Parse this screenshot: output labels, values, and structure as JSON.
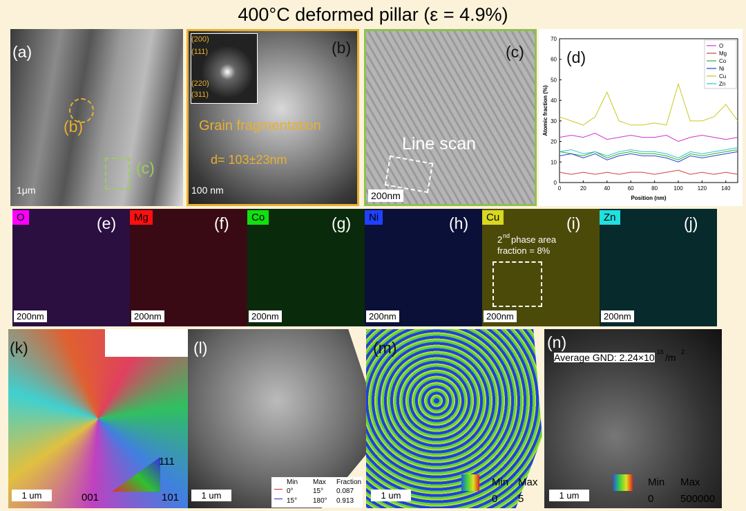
{
  "title": "400°C deformed pillar (ε = 4.9%)",
  "panels": {
    "a": {
      "label": "(a)",
      "markers": [
        "(b)",
        "(c)"
      ],
      "scale_bar": "1μm"
    },
    "b": {
      "label": "(b)",
      "diffraction": [
        "(200)",
        "(111)",
        "(220)",
        "(311)"
      ],
      "caption": "Grain fragmentation",
      "size": "d= 103±23nm",
      "scale_bar": "100 nm"
    },
    "c": {
      "label": "(c)",
      "annotation": "Line scan",
      "scale_bar": "200nm"
    },
    "d": {
      "label": "(d)"
    },
    "maps": [
      {
        "element": "O",
        "label": "(e)",
        "scale_bar": "200nm"
      },
      {
        "element": "Mg",
        "label": "(f)",
        "scale_bar": "200nm"
      },
      {
        "element": "Co",
        "label": "(g)",
        "scale_bar": "200nm"
      },
      {
        "element": "Ni",
        "label": "(h)",
        "scale_bar": "200nm"
      },
      {
        "element": "Cu",
        "label": "(i)",
        "scale_bar": "200nm",
        "note": [
          "2",
          "nd",
          " phase area",
          "fraction = 8%"
        ]
      },
      {
        "element": "Zn",
        "label": "(j)",
        "scale_bar": "200nm"
      }
    ],
    "k": {
      "label": "(k)",
      "scale_bar": "1 um",
      "poles": [
        "111",
        "001",
        "101"
      ]
    },
    "l": {
      "label": "(l)",
      "scale_bar": "1 um",
      "table": {
        "header": [
          "Min",
          "Max",
          "Fraction"
        ],
        "rows": [
          [
            "0°",
            "15°",
            "0.087"
          ],
          [
            "15°",
            "180°",
            "0.913"
          ]
        ]
      }
    },
    "m": {
      "label": "(m)",
      "scale_bar": "1 um",
      "legend": {
        "min_label": "Min",
        "max_label": "Max",
        "min": "0",
        "max": "5"
      }
    },
    "n": {
      "label": "(n)",
      "scale_bar": "1 um",
      "note": [
        "Average GND: 2.24×10",
        "16",
        "/m",
        "2"
      ],
      "legend": {
        "min_label": "Min",
        "max_label": "Max",
        "min": "0",
        "max": "500000"
      }
    }
  },
  "chart_data": {
    "type": "line",
    "x": [
      0,
      10,
      20,
      30,
      40,
      50,
      60,
      70,
      80,
      90,
      100,
      110,
      120,
      130,
      140,
      150
    ],
    "series": [
      {
        "name": "O",
        "color": "#cc33cc",
        "values": [
          22,
          23,
          22,
          24,
          21,
          22,
          23,
          22,
          22,
          23,
          20,
          22,
          23,
          22,
          21,
          22
        ]
      },
      {
        "name": "Mg",
        "color": "#d04040",
        "values": [
          5,
          4,
          5,
          4,
          5,
          4,
          5,
          5,
          4,
          5,
          6,
          4,
          5,
          4,
          5,
          4
        ]
      },
      {
        "name": "Co",
        "color": "#33aa33",
        "values": [
          15,
          14,
          13,
          15,
          12,
          14,
          15,
          14,
          14,
          13,
          11,
          14,
          13,
          14,
          15,
          16
        ]
      },
      {
        "name": "Ni",
        "color": "#2244cc",
        "values": [
          13,
          14,
          12,
          14,
          11,
          13,
          14,
          13,
          13,
          12,
          10,
          13,
          12,
          13,
          14,
          15
        ]
      },
      {
        "name": "Cu",
        "color": "#c8c820",
        "values": [
          32,
          30,
          28,
          32,
          44,
          30,
          28,
          28,
          29,
          28,
          48,
          30,
          30,
          32,
          38,
          30
        ]
      },
      {
        "name": "Zn",
        "color": "#22c8c8",
        "values": [
          15,
          16,
          14,
          15,
          13,
          15,
          16,
          15,
          15,
          14,
          12,
          15,
          14,
          15,
          16,
          17
        ]
      }
    ],
    "xlabel": "Position (nm)",
    "ylabel": "Atomic fraction (%)",
    "xlim": [
      0,
      150
    ],
    "xticks": [
      0,
      20,
      40,
      60,
      80,
      100,
      120,
      140
    ],
    "ylim": [
      0,
      70
    ],
    "yticks": [
      0,
      10,
      20,
      30,
      40,
      50,
      60,
      70
    ],
    "legend": "upper-right"
  }
}
